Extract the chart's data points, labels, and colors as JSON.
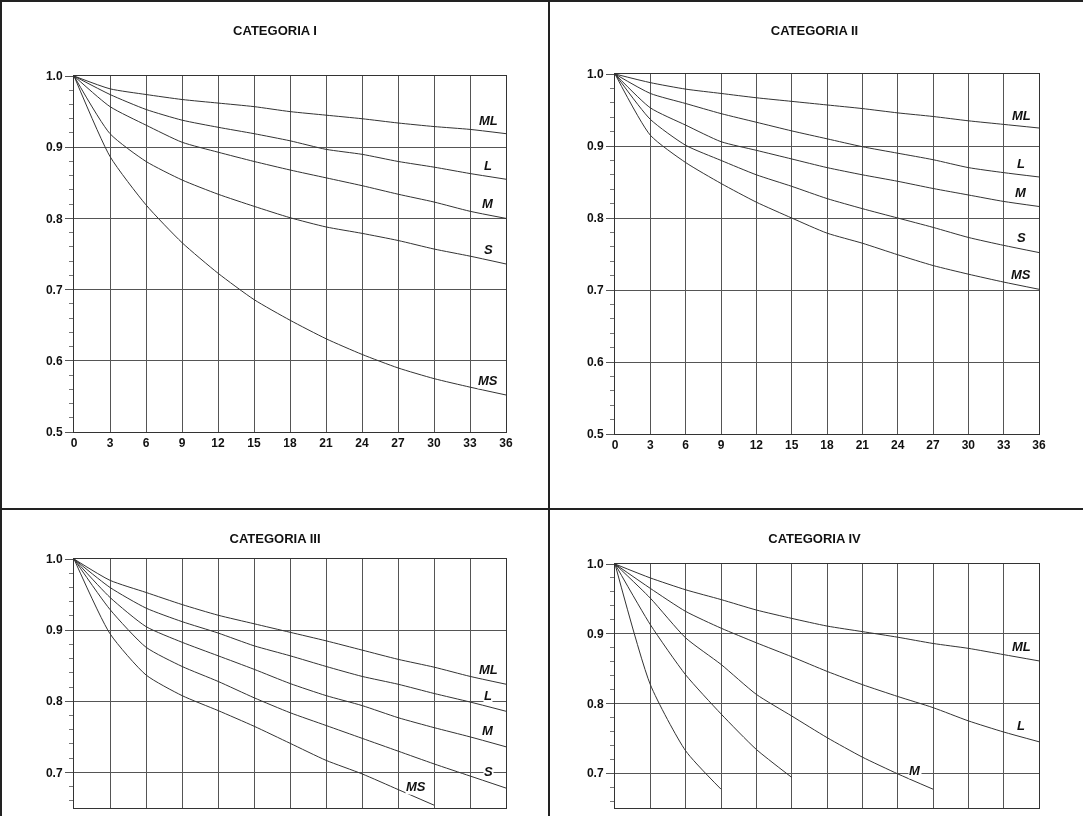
{
  "chart_data": [
    {
      "type": "line",
      "title": "CATEGORIA I",
      "x": [
        0,
        3,
        6,
        9,
        12,
        15,
        18,
        21,
        24,
        27,
        30,
        33,
        36
      ],
      "xlim": [
        0,
        36
      ],
      "xticks": [
        0,
        3,
        6,
        9,
        12,
        15,
        18,
        21,
        24,
        27,
        30,
        33,
        36
      ],
      "ylim": [
        0.5,
        1.0
      ],
      "yticks": [
        {
          "value": 0.5,
          "label": "0.5"
        },
        {
          "value": 0.6,
          "label": "0.6"
        },
        {
          "value": 0.7,
          "label": "0.7"
        },
        {
          "value": 0.8,
          "label": "0.8"
        },
        {
          "value": 0.9,
          "label": "0.9"
        },
        {
          "value": 1.0,
          "label": "1.0"
        },
        {
          "value": 0.52,
          "label": null
        },
        {
          "value": 0.54,
          "label": null
        },
        {
          "value": 0.56,
          "label": null
        },
        {
          "value": 0.58,
          "label": null
        },
        {
          "value": 0.62,
          "label": null
        },
        {
          "value": 0.64,
          "label": null
        },
        {
          "value": 0.66,
          "label": null
        },
        {
          "value": 0.68,
          "label": null
        },
        {
          "value": 0.72,
          "label": null
        },
        {
          "value": 0.74,
          "label": null
        },
        {
          "value": 0.76,
          "label": null
        },
        {
          "value": 0.78,
          "label": null
        },
        {
          "value": 0.82,
          "label": null
        },
        {
          "value": 0.84,
          "label": null
        },
        {
          "value": 0.86,
          "label": null
        },
        {
          "value": 0.88,
          "label": null
        },
        {
          "value": 0.92,
          "label": null
        },
        {
          "value": 0.94,
          "label": null
        },
        {
          "value": 0.96,
          "label": null
        },
        {
          "value": 0.98,
          "label": null
        }
      ],
      "grid": true,
      "series": [
        {
          "name": "ML",
          "color": "#333333",
          "values": [
            1.0,
            0.982,
            0.974,
            0.967,
            0.962,
            0.957,
            0.95,
            0.945,
            0.94,
            0.934,
            0.929,
            0.925,
            0.919
          ]
        },
        {
          "name": "L",
          "color": "#333333",
          "values": [
            1.0,
            0.974,
            0.953,
            0.938,
            0.928,
            0.919,
            0.909,
            0.897,
            0.89,
            0.88,
            0.872,
            0.863,
            0.855
          ]
        },
        {
          "name": "M",
          "color": "#333333",
          "values": [
            1.0,
            0.957,
            0.931,
            0.907,
            0.893,
            0.88,
            0.868,
            0.857,
            0.846,
            0.834,
            0.823,
            0.81,
            0.8
          ]
        },
        {
          "name": "S",
          "color": "#333333",
          "values": [
            1.0,
            0.919,
            0.88,
            0.854,
            0.834,
            0.817,
            0.801,
            0.788,
            0.779,
            0.769,
            0.757,
            0.747,
            0.736
          ]
        },
        {
          "name": "MS",
          "color": "#333333",
          "values": [
            1.0,
            0.887,
            0.819,
            0.766,
            0.723,
            0.686,
            0.657,
            0.631,
            0.609,
            0.59,
            0.575,
            0.563,
            0.552
          ]
        }
      ]
    },
    {
      "type": "line",
      "title": "CATEGORIA II",
      "x": [
        0,
        3,
        6,
        9,
        12,
        15,
        18,
        21,
        24,
        27,
        30,
        33,
        36
      ],
      "xlim": [
        0,
        36
      ],
      "xticks": [
        0,
        3,
        6,
        9,
        12,
        15,
        18,
        21,
        24,
        27,
        30,
        33,
        36
      ],
      "ylim": [
        0.5,
        1.0
      ],
      "yticks": [
        {
          "value": 0.5,
          "label": "0.5"
        },
        {
          "value": 0.6,
          "label": "0.6"
        },
        {
          "value": 0.7,
          "label": "0.7"
        },
        {
          "value": 0.8,
          "label": "0.8"
        },
        {
          "value": 0.9,
          "label": "0.9"
        },
        {
          "value": 1.0,
          "label": "1.0"
        },
        {
          "value": 0.52,
          "label": null
        },
        {
          "value": 0.54,
          "label": null
        },
        {
          "value": 0.56,
          "label": null
        },
        {
          "value": 0.58,
          "label": null
        },
        {
          "value": 0.62,
          "label": null
        },
        {
          "value": 0.64,
          "label": null
        },
        {
          "value": 0.66,
          "label": null
        },
        {
          "value": 0.68,
          "label": null
        },
        {
          "value": 0.72,
          "label": null
        },
        {
          "value": 0.74,
          "label": null
        },
        {
          "value": 0.76,
          "label": null
        },
        {
          "value": 0.78,
          "label": null
        },
        {
          "value": 0.82,
          "label": null
        },
        {
          "value": 0.84,
          "label": null
        },
        {
          "value": 0.86,
          "label": null
        },
        {
          "value": 0.88,
          "label": null
        },
        {
          "value": 0.92,
          "label": null
        },
        {
          "value": 0.94,
          "label": null
        },
        {
          "value": 0.96,
          "label": null
        },
        {
          "value": 0.98,
          "label": null
        }
      ],
      "grid": true,
      "series": [
        {
          "name": "ML",
          "color": "#333333",
          "values": [
            1.0,
            0.988,
            0.979,
            0.973,
            0.967,
            0.962,
            0.957,
            0.952,
            0.946,
            0.941,
            0.935,
            0.93,
            0.925
          ]
        },
        {
          "name": "L",
          "color": "#333333",
          "values": [
            1.0,
            0.973,
            0.959,
            0.945,
            0.933,
            0.921,
            0.91,
            0.899,
            0.89,
            0.881,
            0.87,
            0.863,
            0.857
          ]
        },
        {
          "name": "M",
          "color": "#333333",
          "values": [
            1.0,
            0.953,
            0.929,
            0.906,
            0.894,
            0.882,
            0.87,
            0.86,
            0.851,
            0.841,
            0.832,
            0.823,
            0.816
          ]
        },
        {
          "name": "S",
          "color": "#333333",
          "values": [
            1.0,
            0.937,
            0.901,
            0.88,
            0.86,
            0.844,
            0.827,
            0.813,
            0.8,
            0.787,
            0.773,
            0.762,
            0.752
          ]
        },
        {
          "name": "MS",
          "color": "#333333",
          "values": [
            1.0,
            0.915,
            0.877,
            0.848,
            0.822,
            0.8,
            0.779,
            0.765,
            0.749,
            0.734,
            0.722,
            0.711,
            0.701
          ]
        }
      ]
    },
    {
      "type": "line",
      "title": "CATEGORIA III",
      "x": [
        0,
        3,
        6,
        9,
        12,
        15,
        18,
        21,
        24,
        27,
        30,
        33,
        36
      ],
      "xlim": [
        0,
        36
      ],
      "xticks": [
        0,
        3,
        6,
        9,
        12,
        15,
        18,
        21,
        24,
        27,
        30,
        33,
        36
      ],
      "tick_labels": "y",
      "ylim": [
        0.65,
        1.0
      ],
      "yticks": [
        {
          "value": 0.7,
          "label": "0.7"
        },
        {
          "value": 0.8,
          "label": "0.8"
        },
        {
          "value": 0.9,
          "label": "0.9"
        },
        {
          "value": 1.0,
          "label": "1.0"
        },
        {
          "value": 0.66,
          "label": null
        },
        {
          "value": 0.68,
          "label": null
        },
        {
          "value": 0.72,
          "label": null
        },
        {
          "value": 0.74,
          "label": null
        },
        {
          "value": 0.76,
          "label": null
        },
        {
          "value": 0.78,
          "label": null
        },
        {
          "value": 0.82,
          "label": null
        },
        {
          "value": 0.84,
          "label": null
        },
        {
          "value": 0.86,
          "label": null
        },
        {
          "value": 0.88,
          "label": null
        },
        {
          "value": 0.92,
          "label": null
        },
        {
          "value": 0.94,
          "label": null
        },
        {
          "value": 0.96,
          "label": null
        },
        {
          "value": 0.98,
          "label": null
        }
      ],
      "grid": true,
      "series": [
        {
          "name": "ML",
          "color": "#333333",
          "values": [
            1.0,
            0.97,
            0.953,
            0.936,
            0.921,
            0.909,
            0.897,
            0.885,
            0.872,
            0.859,
            0.848,
            0.835,
            0.824
          ]
        },
        {
          "name": "L",
          "color": "#333333",
          "values": [
            1.0,
            0.96,
            0.931,
            0.912,
            0.896,
            0.878,
            0.864,
            0.849,
            0.835,
            0.824,
            0.811,
            0.799,
            0.786
          ]
        },
        {
          "name": "M",
          "color": "#333333",
          "values": [
            1.0,
            0.946,
            0.905,
            0.883,
            0.864,
            0.845,
            0.825,
            0.808,
            0.794,
            0.777,
            0.763,
            0.75,
            0.736
          ]
        },
        {
          "name": "S",
          "color": "#333333",
          "values": [
            1.0,
            0.929,
            0.876,
            0.849,
            0.828,
            0.805,
            0.784,
            0.766,
            0.748,
            0.73,
            0.712,
            0.695,
            0.678
          ]
        },
        {
          "name": "MS",
          "color": "#333333",
          "values": [
            1.0,
            0.895,
            0.837,
            0.808,
            0.787,
            0.765,
            0.741,
            0.717,
            0.698,
            0.676,
            0.654,
            null,
            null
          ]
        }
      ]
    },
    {
      "type": "line",
      "title": "CATEGORIA IV",
      "x": [
        0,
        3,
        6,
        9,
        12,
        15,
        18,
        21,
        24,
        27,
        30,
        33,
        36
      ],
      "xlim": [
        0,
        36
      ],
      "xticks": [
        0,
        3,
        6,
        9,
        12,
        15,
        18,
        21,
        24,
        27,
        30,
        33,
        36
      ],
      "tick_labels": "y",
      "ylim": [
        0.65,
        1.0
      ],
      "yticks": [
        {
          "value": 0.7,
          "label": "0.7"
        },
        {
          "value": 0.8,
          "label": "0.8"
        },
        {
          "value": 0.9,
          "label": "0.9"
        },
        {
          "value": 1.0,
          "label": "1.0"
        },
        {
          "value": 0.66,
          "label": null
        },
        {
          "value": 0.68,
          "label": null
        },
        {
          "value": 0.72,
          "label": null
        },
        {
          "value": 0.74,
          "label": null
        },
        {
          "value": 0.76,
          "label": null
        },
        {
          "value": 0.78,
          "label": null
        },
        {
          "value": 0.82,
          "label": null
        },
        {
          "value": 0.84,
          "label": null
        },
        {
          "value": 0.86,
          "label": null
        },
        {
          "value": 0.88,
          "label": null
        },
        {
          "value": 0.92,
          "label": null
        },
        {
          "value": 0.94,
          "label": null
        },
        {
          "value": 0.96,
          "label": null
        },
        {
          "value": 0.98,
          "label": null
        }
      ],
      "grid": true,
      "series": [
        {
          "name": "ML",
          "color": "#333333",
          "values": [
            1.0,
            0.98,
            0.963,
            0.949,
            0.934,
            0.922,
            0.911,
            0.903,
            0.895,
            0.886,
            0.879,
            0.87,
            0.861
          ]
        },
        {
          "name": "L",
          "color": "#333333",
          "values": [
            1.0,
            0.965,
            0.932,
            0.908,
            0.887,
            0.867,
            0.846,
            0.827,
            0.81,
            0.794,
            0.775,
            0.759,
            0.745
          ]
        },
        {
          "name": "M",
          "color": "#333333",
          "values": [
            1.0,
            0.951,
            0.894,
            0.856,
            0.813,
            0.782,
            0.751,
            0.723,
            0.699,
            0.677,
            null,
            null,
            null
          ]
        },
        {
          "color": "#333333",
          "values": [
            1.0,
            0.913,
            0.841,
            0.785,
            0.734,
            0.694,
            null,
            null,
            null,
            null,
            null,
            null,
            null
          ]
        },
        {
          "color": "#333333",
          "values": [
            1.0,
            0.827,
            0.732,
            0.677,
            null,
            null,
            null,
            null,
            null,
            null,
            null,
            null,
            null
          ]
        }
      ]
    }
  ]
}
